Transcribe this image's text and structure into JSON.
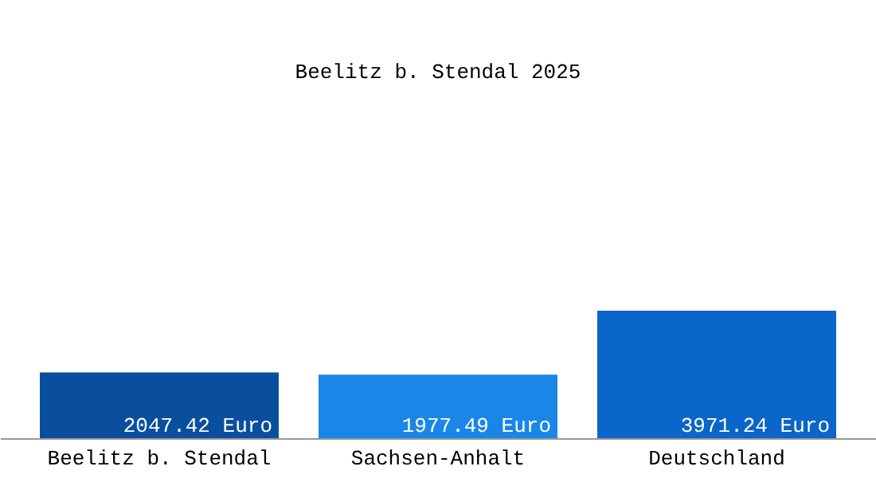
{
  "chart_data": {
    "type": "bar",
    "title": "Beelitz b. Stendal 2025",
    "categories": [
      "Beelitz b. Stendal",
      "Sachsen-Anhalt",
      "Deutschland"
    ],
    "values": [
      2047.42,
      1977.49,
      3971.24
    ],
    "colors": [
      "#0a4f9e",
      "#1a86e8",
      "#0a66c8"
    ],
    "value_labels": [
      "2047.42 Euro",
      "1977.49 Euro",
      "3971.24 Euro"
    ]
  }
}
